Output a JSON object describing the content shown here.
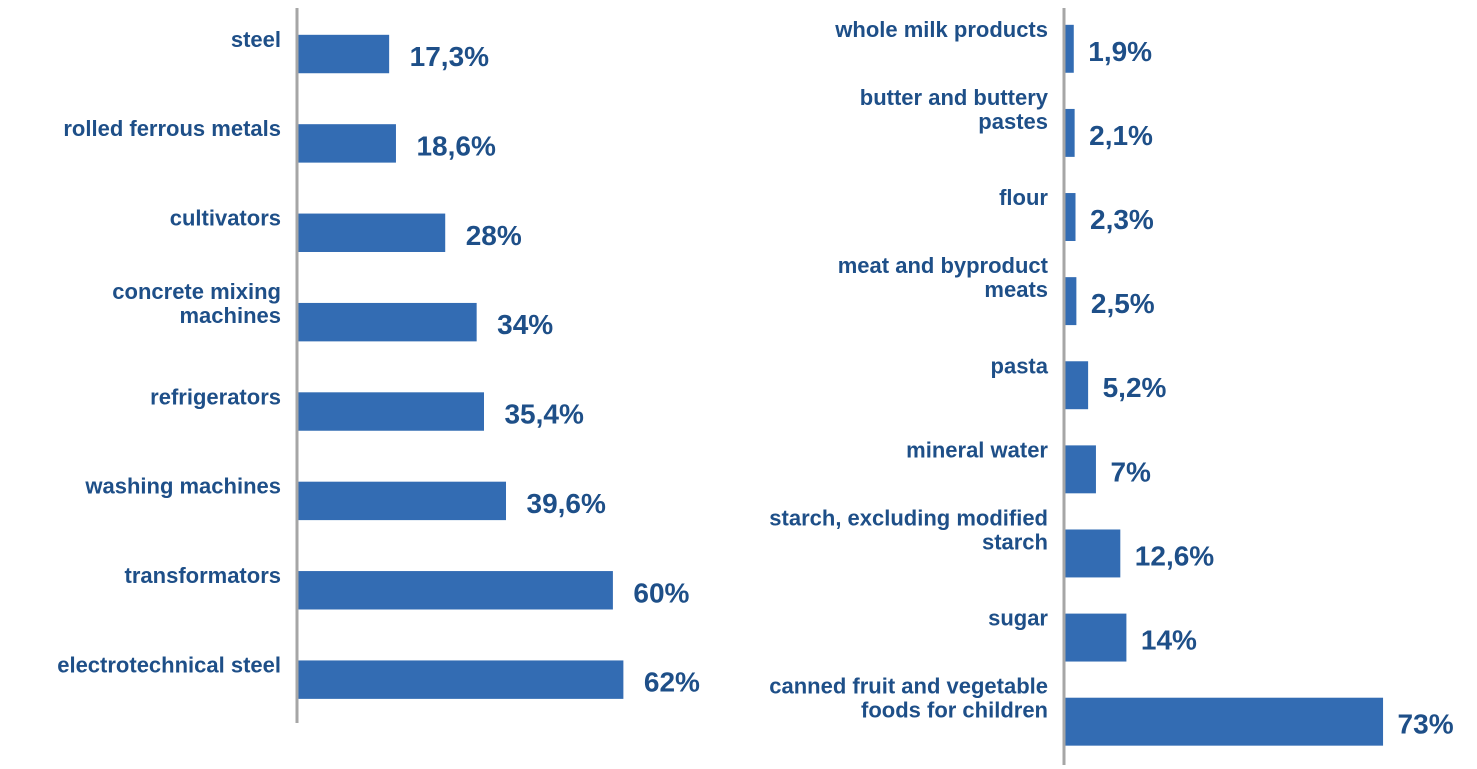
{
  "colors": {
    "bar": "#336cb3",
    "text": "#1e4f88",
    "axis": "#a6a6a6"
  },
  "chart_data": [
    {
      "type": "bar",
      "orientation": "horizontal",
      "categories": [
        "steel",
        "rolled ferrous metals",
        "cultivators",
        "concrete mixing machines",
        "refrigerators",
        "washing machines",
        "transformators",
        "electrotechnical steel"
      ],
      "category_lines": [
        [
          "steel"
        ],
        [
          "rolled ferrous metals"
        ],
        [
          "cultivators"
        ],
        [
          "concrete mixing",
          "machines"
        ],
        [
          "refrigerators"
        ],
        [
          "washing machines"
        ],
        [
          "transformators"
        ],
        [
          "electrotechnical steel"
        ]
      ],
      "values": [
        17.3,
        18.6,
        28,
        34,
        35.4,
        39.6,
        60,
        62
      ],
      "value_labels": [
        "17,3%",
        "18,6%",
        "28%",
        "34%",
        "35,4%",
        "39,6%",
        "60%",
        "62%"
      ],
      "unit": "%",
      "grid": false,
      "legend": "none"
    },
    {
      "type": "bar",
      "orientation": "horizontal",
      "categories": [
        "whole milk products",
        "butter and buttery pastes",
        "flour",
        "meat and byproduct meats",
        "pasta",
        "mineral water",
        "starch, excluding modified starch",
        "sugar",
        "canned fruit and vegetable foods for children"
      ],
      "category_lines": [
        [
          "whole milk products"
        ],
        [
          "butter and buttery",
          "pastes"
        ],
        [
          "flour"
        ],
        [
          "meat and byproduct",
          "meats"
        ],
        [
          "pasta"
        ],
        [
          "mineral water"
        ],
        [
          "starch, excluding modified",
          "starch"
        ],
        [
          "sugar"
        ],
        [
          "canned fruit and vegetable",
          "foods for children"
        ]
      ],
      "values": [
        1.9,
        2.1,
        2.3,
        2.5,
        5.2,
        7,
        12.6,
        14,
        73
      ],
      "value_labels": [
        "1,9%",
        "2,1%",
        "2,3%",
        "2,5%",
        "5,2%",
        "7%",
        "12,6%",
        "14%",
        "73%"
      ],
      "unit": "%",
      "grid": false,
      "legend": "none"
    }
  ]
}
